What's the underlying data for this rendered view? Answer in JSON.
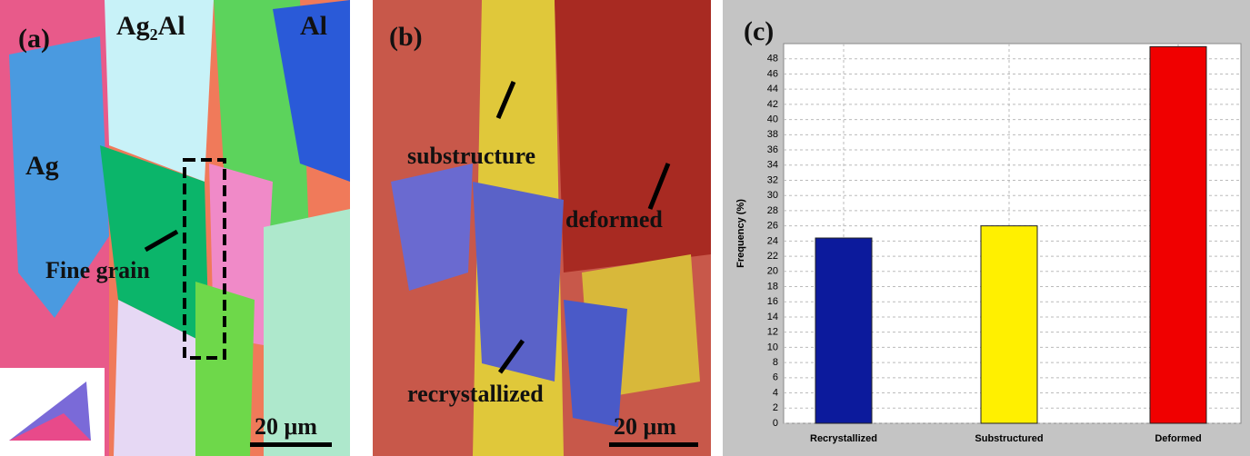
{
  "panel_a": {
    "label": "(a)",
    "phases": [
      "Ag₂Al",
      "Al",
      "Ag"
    ],
    "annotation": "Fine grain",
    "scale_bar": "20 μm"
  },
  "panel_b": {
    "label": "(b)",
    "annotations": [
      "substructure",
      "deformed",
      "recrystallized"
    ],
    "scale_bar": "20 μm"
  },
  "chart_data": {
    "type": "bar",
    "label": "(c)",
    "y_label": "Frequency (%)",
    "categories": [
      "Recrystallized",
      "Substructured",
      "Deformed"
    ],
    "values": [
      24.4,
      26.0,
      49.6
    ],
    "colors": [
      "#0c1a9c",
      "#fff000",
      "#f00000"
    ],
    "ylim": [
      0,
      50
    ],
    "yticks": [
      0,
      2,
      4,
      6,
      8,
      10,
      12,
      14,
      16,
      18,
      20,
      22,
      24,
      26,
      28,
      30,
      32,
      34,
      36,
      38,
      40,
      42,
      44,
      46,
      48
    ],
    "grid": true
  }
}
